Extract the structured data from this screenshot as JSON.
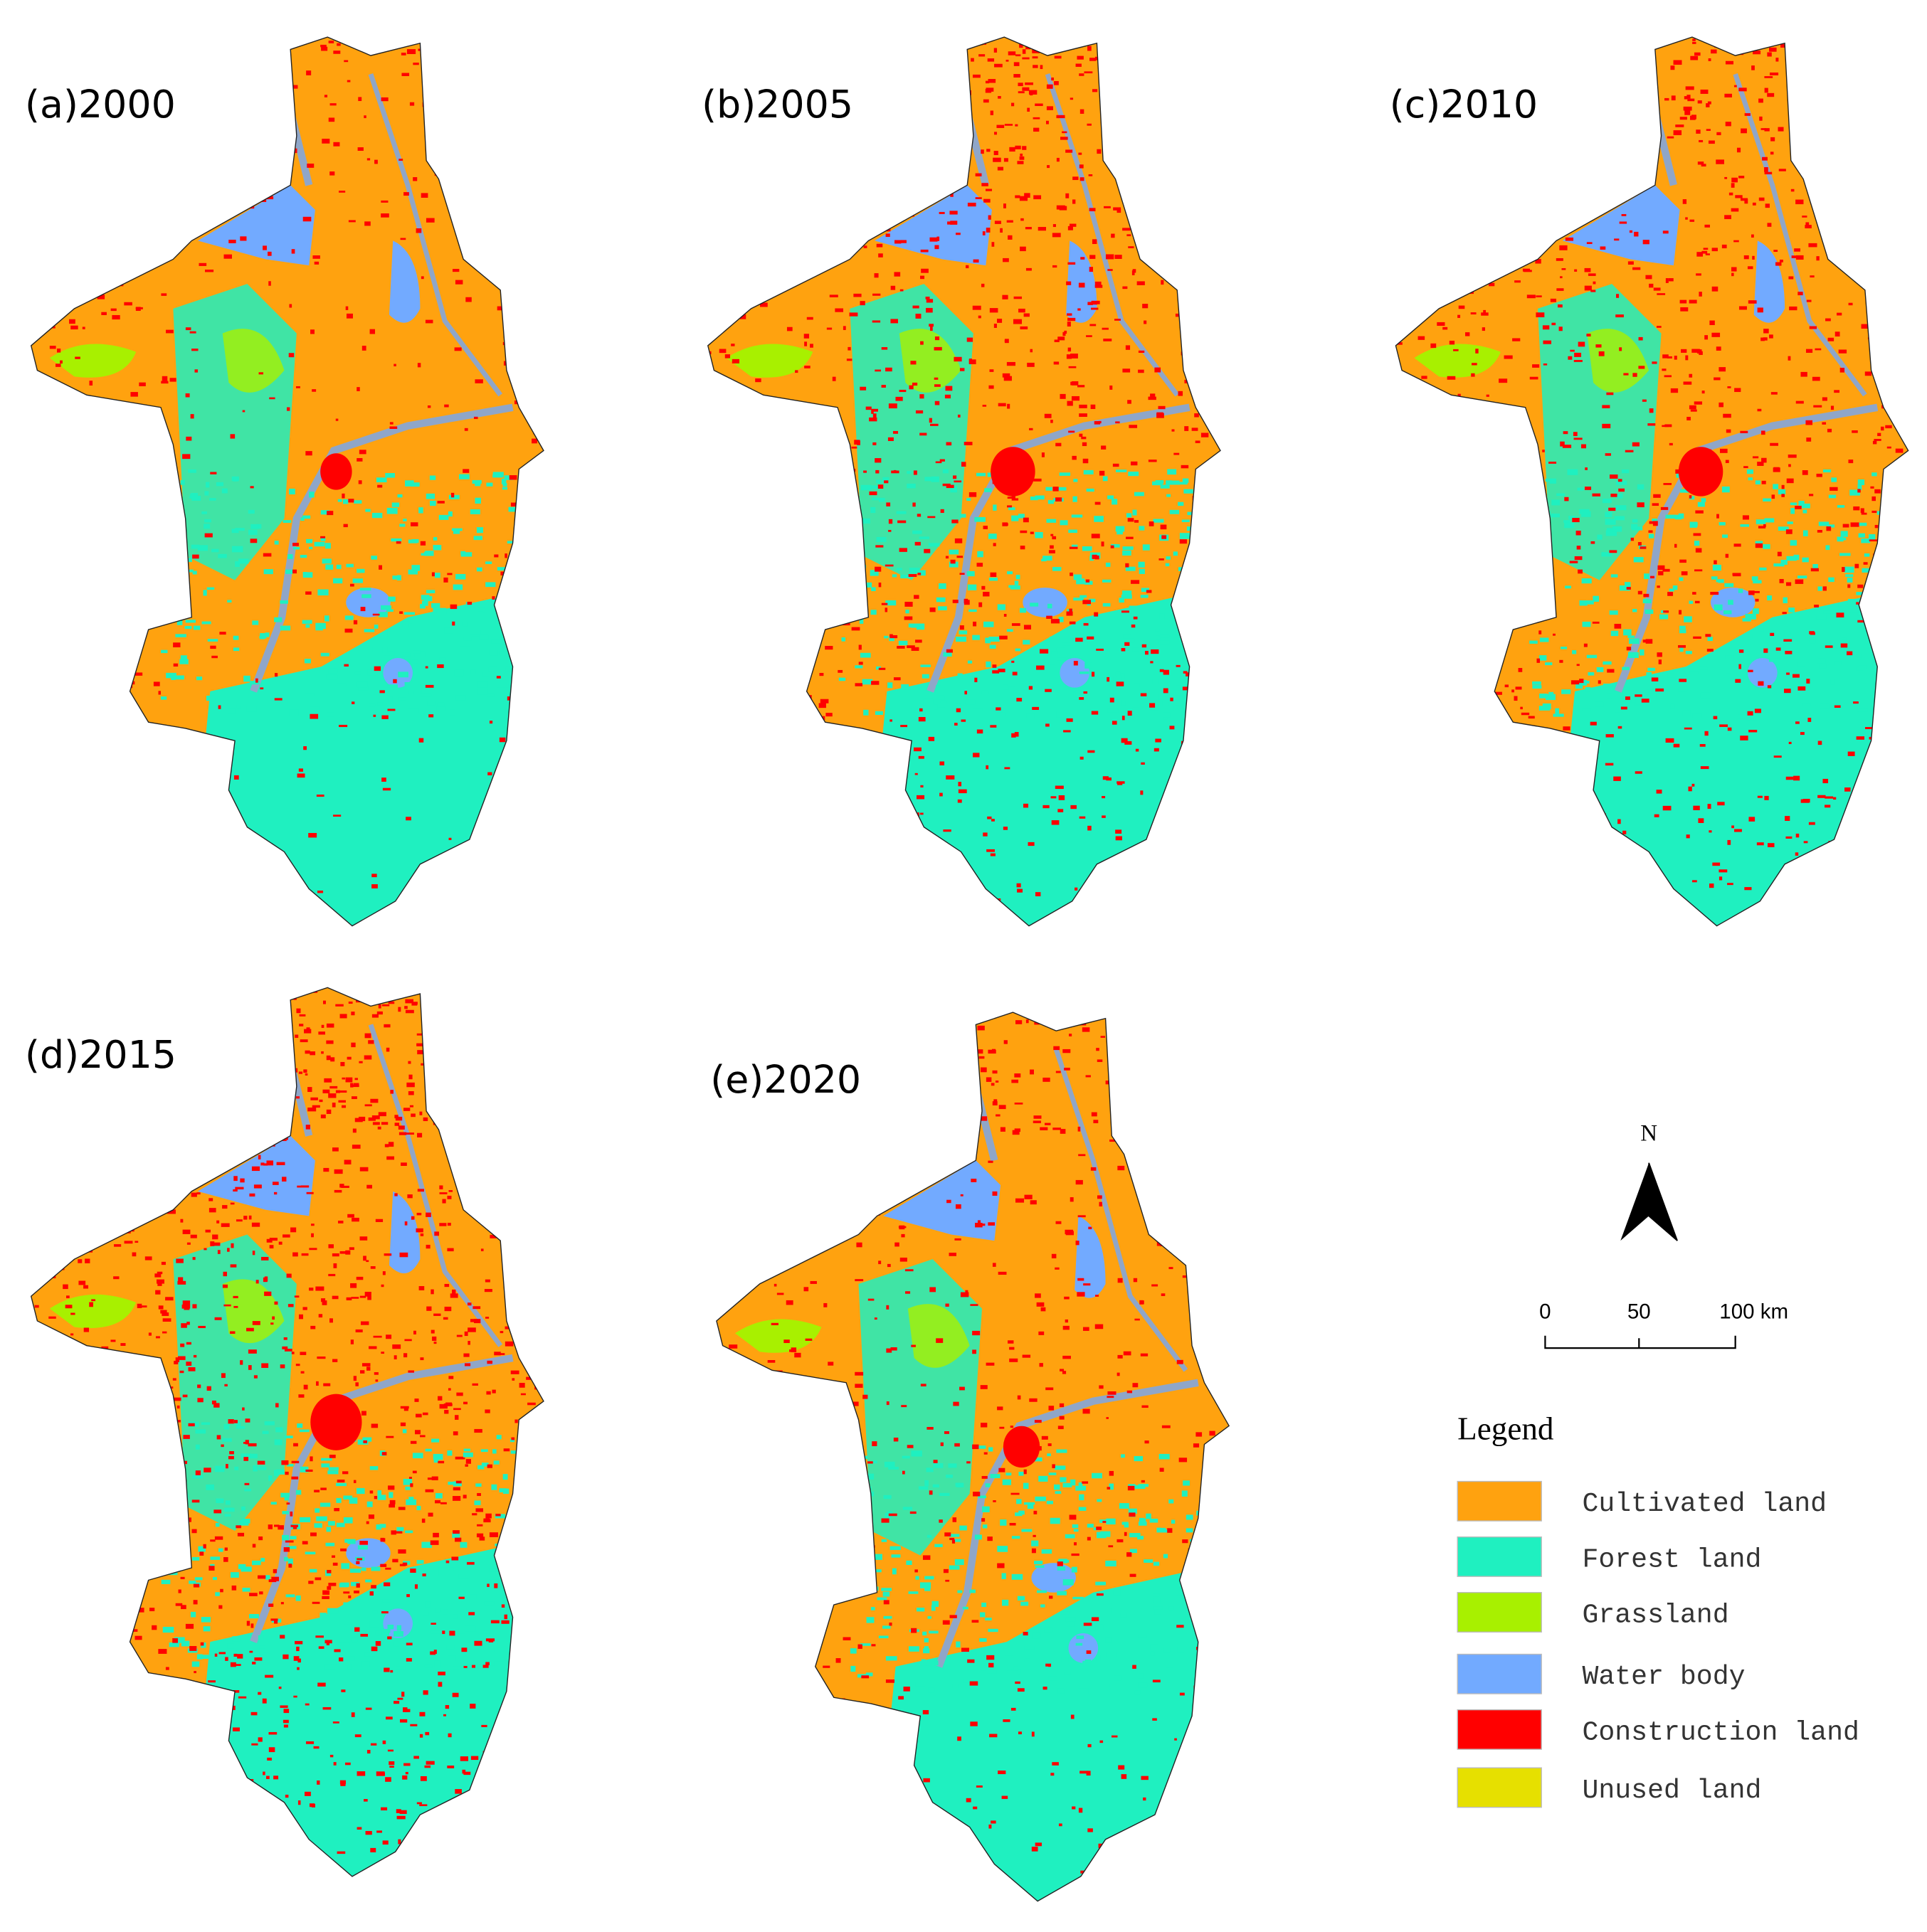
{
  "panels": [
    {
      "label": "(a)2000"
    },
    {
      "label": "(b)2005"
    },
    {
      "label": "(c)2010"
    },
    {
      "label": "(d)2015"
    },
    {
      "label": "(e)2020"
    }
  ],
  "north": "N",
  "scale_bar": {
    "labels": [
      "0",
      "50",
      "100 km"
    ]
  },
  "legend": {
    "title": "Legend",
    "items": [
      {
        "label": "Cultivated land",
        "color": "#ffa20f"
      },
      {
        "label": "Forest land",
        "color": "#1ff0c0"
      },
      {
        "label": "Grassland",
        "color": "#a8f000"
      },
      {
        "label": "Water body",
        "color": "#72aaff"
      },
      {
        "label": "Construction land",
        "color": "#ff0000"
      },
      {
        "label": "Unused land",
        "color": "#e6e000"
      }
    ]
  }
}
